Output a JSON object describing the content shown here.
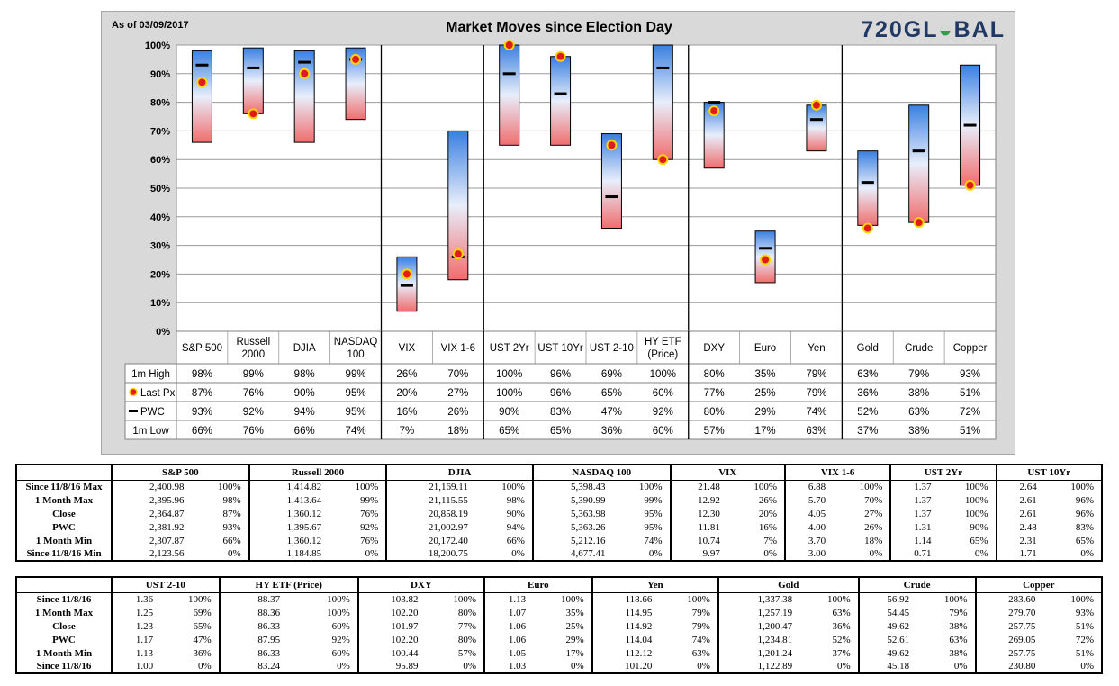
{
  "header": {
    "as_of": "As of 03/09/2017",
    "title": "Market Moves since Election Day",
    "logo_text_a": "720GL",
    "logo_text_b": "BAL"
  },
  "colors": {
    "bar_top": "#3a7fe0",
    "bar_mid": "#e8eefb",
    "bar_bottom": "#f06d6d",
    "last_px_dot": "#e01b1b",
    "last_px_ring": "#ffd400",
    "pwc_mark": "#000000",
    "panel_bg": "#d9d9d9",
    "plot_bg": "#ffffff"
  },
  "chart_data": {
    "type": "range-bar",
    "title": "Market Moves since Election Day",
    "ylim": [
      0,
      100
    ],
    "y_ticks": [
      "0%",
      "10%",
      "20%",
      "30%",
      "40%",
      "50%",
      "60%",
      "70%",
      "80%",
      "90%",
      "100%"
    ],
    "grid": true,
    "categories": [
      "S&P 500",
      "Russell 2000",
      "DJIA",
      "NASDAQ 100",
      "VIX",
      "VIX 1-6",
      "UST 2Yr",
      "UST 10Yr",
      "UST 2-10",
      "HY ETF (Price)",
      "DXY",
      "Euro",
      "Yen",
      "Gold",
      "Crude",
      "Copper"
    ],
    "category_lines": [
      [
        "S&P 500"
      ],
      [
        "Russell",
        "2000"
      ],
      [
        "DJIA"
      ],
      [
        "NASDAQ",
        "100"
      ],
      [
        "VIX"
      ],
      [
        "VIX 1-6"
      ],
      [
        "UST 2Yr"
      ],
      [
        "UST 10Yr"
      ],
      [
        "UST 2-10"
      ],
      [
        "HY ETF",
        "(Price)"
      ],
      [
        "DXY"
      ],
      [
        "Euro"
      ],
      [
        "Yen"
      ],
      [
        "Gold"
      ],
      [
        "Crude"
      ],
      [
        "Copper"
      ]
    ],
    "group_separators_after": [
      3,
      5,
      9,
      12
    ],
    "series": [
      {
        "name": "1m High",
        "values": [
          98,
          99,
          98,
          99,
          26,
          70,
          100,
          96,
          69,
          100,
          80,
          35,
          79,
          63,
          79,
          93
        ]
      },
      {
        "name": "Last Px",
        "values": [
          87,
          76,
          90,
          95,
          20,
          27,
          100,
          96,
          65,
          60,
          77,
          25,
          79,
          36,
          38,
          51
        ]
      },
      {
        "name": "PWC",
        "values": [
          93,
          92,
          94,
          95,
          16,
          26,
          90,
          83,
          47,
          92,
          80,
          29,
          74,
          52,
          63,
          72
        ]
      },
      {
        "name": "1m Low",
        "values": [
          66,
          76,
          66,
          74,
          7,
          18,
          65,
          65,
          36,
          60,
          57,
          17,
          63,
          37,
          38,
          51
        ]
      }
    ],
    "legend": [
      "1m High",
      "Last Px",
      "PWC",
      "1m Low"
    ]
  },
  "tables": [
    {
      "columns": [
        "S&P 500",
        "Russell 2000",
        "DJIA",
        "NASDAQ 100",
        "VIX",
        "VIX 1-6",
        "UST 2Yr",
        "UST 10Yr"
      ],
      "rows": [
        {
          "label": "Since 11/8/16 Max",
          "cells": [
            [
              "2,400.98",
              "100%"
            ],
            [
              "1,414.82",
              "100%"
            ],
            [
              "21,169.11",
              "100%"
            ],
            [
              "5,398.43",
              "100%"
            ],
            [
              "21.48",
              "100%"
            ],
            [
              "6.88",
              "100%"
            ],
            [
              "1.37",
              "100%"
            ],
            [
              "2.64",
              "100%"
            ]
          ]
        },
        {
          "label": "1 Month Max",
          "cells": [
            [
              "2,395.96",
              "98%"
            ],
            [
              "1,413.64",
              "99%"
            ],
            [
              "21,115.55",
              "98%"
            ],
            [
              "5,390.99",
              "99%"
            ],
            [
              "12.92",
              "26%"
            ],
            [
              "5.70",
              "70%"
            ],
            [
              "1.37",
              "100%"
            ],
            [
              "2.61",
              "96%"
            ]
          ]
        },
        {
          "label": "Close",
          "cells": [
            [
              "2,364.87",
              "87%"
            ],
            [
              "1,360.12",
              "76%"
            ],
            [
              "20,858.19",
              "90%"
            ],
            [
              "5,363.98",
              "95%"
            ],
            [
              "12.30",
              "20%"
            ],
            [
              "4.05",
              "27%"
            ],
            [
              "1.37",
              "100%"
            ],
            [
              "2.61",
              "96%"
            ]
          ]
        },
        {
          "label": "PWC",
          "cells": [
            [
              "2,381.92",
              "93%"
            ],
            [
              "1,395.67",
              "92%"
            ],
            [
              "21,002.97",
              "94%"
            ],
            [
              "5,363.26",
              "95%"
            ],
            [
              "11.81",
              "16%"
            ],
            [
              "4.00",
              "26%"
            ],
            [
              "1.31",
              "90%"
            ],
            [
              "2.48",
              "83%"
            ]
          ]
        },
        {
          "label": "1 Month Min",
          "cells": [
            [
              "2,307.87",
              "66%"
            ],
            [
              "1,360.12",
              "76%"
            ],
            [
              "20,172.40",
              "66%"
            ],
            [
              "5,212.16",
              "74%"
            ],
            [
              "10.74",
              "7%"
            ],
            [
              "3.70",
              "18%"
            ],
            [
              "1.14",
              "65%"
            ],
            [
              "2.31",
              "65%"
            ]
          ]
        },
        {
          "label": "Since 11/8/16 Min",
          "cells": [
            [
              "2,123.56",
              "0%"
            ],
            [
              "1,184.85",
              "0%"
            ],
            [
              "18,200.75",
              "0%"
            ],
            [
              "4,677.41",
              "0%"
            ],
            [
              "9.97",
              "0%"
            ],
            [
              "3.00",
              "0%"
            ],
            [
              "0.71",
              "0%"
            ],
            [
              "1.71",
              "0%"
            ]
          ]
        }
      ]
    },
    {
      "columns": [
        "UST 2-10",
        "HY ETF (Price)",
        "DXY",
        "Euro",
        "Yen",
        "Gold",
        "Crude",
        "Copper"
      ],
      "rows": [
        {
          "label": "Since 11/8/16",
          "cells": [
            [
              "1.36",
              "100%"
            ],
            [
              "88.37",
              "100%"
            ],
            [
              "103.82",
              "100%"
            ],
            [
              "1.13",
              "100%"
            ],
            [
              "118.66",
              "100%"
            ],
            [
              "1,337.38",
              "100%"
            ],
            [
              "56.92",
              "100%"
            ],
            [
              "283.60",
              "100%"
            ]
          ]
        },
        {
          "label": "1 Month Max",
          "cells": [
            [
              "1.25",
              "69%"
            ],
            [
              "88.36",
              "100%"
            ],
            [
              "102.20",
              "80%"
            ],
            [
              "1.07",
              "35%"
            ],
            [
              "114.95",
              "79%"
            ],
            [
              "1,257.19",
              "63%"
            ],
            [
              "54.45",
              "79%"
            ],
            [
              "279.70",
              "93%"
            ]
          ]
        },
        {
          "label": "Close",
          "cells": [
            [
              "1.23",
              "65%"
            ],
            [
              "86.33",
              "60%"
            ],
            [
              "101.97",
              "77%"
            ],
            [
              "1.06",
              "25%"
            ],
            [
              "114.92",
              "79%"
            ],
            [
              "1,200.47",
              "36%"
            ],
            [
              "49.62",
              "38%"
            ],
            [
              "257.75",
              "51%"
            ]
          ]
        },
        {
          "label": "PWC",
          "cells": [
            [
              "1.17",
              "47%"
            ],
            [
              "87.95",
              "92%"
            ],
            [
              "102.20",
              "80%"
            ],
            [
              "1.06",
              "29%"
            ],
            [
              "114.04",
              "74%"
            ],
            [
              "1,234.81",
              "52%"
            ],
            [
              "52.61",
              "63%"
            ],
            [
              "269.05",
              "72%"
            ]
          ]
        },
        {
          "label": "1 Month Min",
          "cells": [
            [
              "1.13",
              "36%"
            ],
            [
              "86.33",
              "60%"
            ],
            [
              "100.44",
              "57%"
            ],
            [
              "1.05",
              "17%"
            ],
            [
              "112.12",
              "63%"
            ],
            [
              "1,201.24",
              "37%"
            ],
            [
              "49.62",
              "38%"
            ],
            [
              "257.75",
              "51%"
            ]
          ]
        },
        {
          "label": "Since 11/8/16",
          "cells": [
            [
              "1.00",
              "0%"
            ],
            [
              "83.24",
              "0%"
            ],
            [
              "95.89",
              "0%"
            ],
            [
              "1.03",
              "0%"
            ],
            [
              "101.20",
              "0%"
            ],
            [
              "1,122.89",
              "0%"
            ],
            [
              "45.18",
              "0%"
            ],
            [
              "230.80",
              "0%"
            ]
          ]
        }
      ]
    }
  ]
}
